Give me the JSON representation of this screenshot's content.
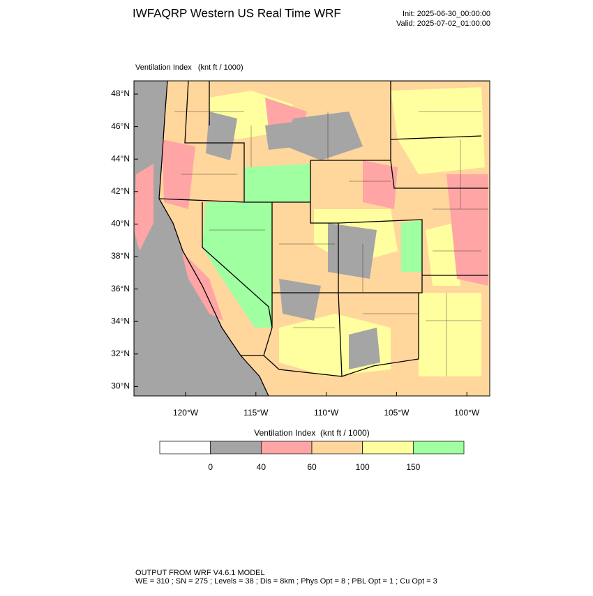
{
  "header": {
    "title": "IWFAQRP Western US Real Time WRF",
    "init": "Init: 2025-06-30_00:00:00",
    "valid": "Valid: 2025-07-02_01:00:00"
  },
  "map": {
    "label": "Ventilation Index   (knt ft / 1000)",
    "lat_labels": [
      "48°N",
      "46°N",
      "44°N",
      "42°N",
      "40°N",
      "38°N",
      "36°N",
      "34°N",
      "32°N",
      "30°N"
    ],
    "lon_labels": [
      "120°W",
      "115°W",
      "110°W",
      "105°W",
      "100°W"
    ]
  },
  "colorbar": {
    "title": "Ventilation Index  (knt ft / 1000)",
    "colors": [
      "#ffffff",
      "#a5a5a5",
      "#ffa5a5",
      "#ffd79c",
      "#ffff9f",
      "#a0ffa0"
    ],
    "labels": [
      0,
      40,
      60,
      100,
      150
    ]
  },
  "footer": {
    "line1": "OUTPUT FROM WRF V4.6.1 MODEL",
    "line2": "WE = 310 ; SN = 275 ; Levels = 38 ; Dis = 8km ; Phys Opt = 8 ; PBL Opt = 1 ; Cu Opt = 3"
  }
}
